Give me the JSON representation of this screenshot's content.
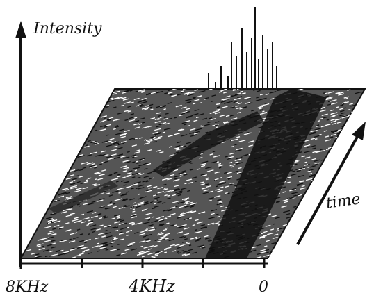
{
  "axis_labels": {
    "vertical": "Intensity",
    "depth": "time"
  },
  "frequency_labels": [
    "8KHz",
    "4KHz",
    "0"
  ]
}
